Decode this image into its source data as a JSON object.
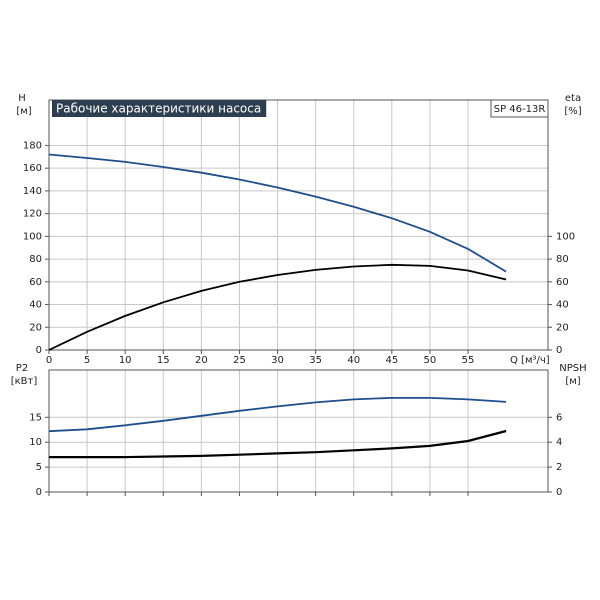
{
  "chart_data": [
    {
      "type": "line",
      "title": "Рабочие характеристики насоса",
      "annotation": "SP 46-13R",
      "ylabel": "H",
      "yunit": "[м]",
      "y2label": "eta",
      "y2unit": "[%]",
      "xlabel": "Q [м³/ч]",
      "x": [
        0,
        5,
        10,
        15,
        20,
        25,
        30,
        35,
        40,
        45,
        50,
        55,
        60
      ],
      "xlim": [
        0,
        65.5
      ],
      "xticks": [
        0,
        5,
        10,
        15,
        20,
        25,
        30,
        35,
        40,
        45,
        50,
        55
      ],
      "ylim": [
        0,
        220
      ],
      "yticks": [
        0,
        20,
        40,
        60,
        80,
        100,
        120,
        140,
        160,
        180
      ],
      "y2lim": [
        0,
        220
      ],
      "y2ticks": [
        0,
        20,
        40,
        60,
        80,
        100
      ],
      "grid": true,
      "series": [
        {
          "name": "H",
          "color": "#1f4e8c",
          "values": [
            172,
            169,
            165.5,
            161,
            156,
            150,
            143,
            135,
            126,
            116,
            104,
            89,
            69
          ]
        },
        {
          "name": "eta",
          "color": "#000000",
          "axis": "y2",
          "values": [
            0,
            16,
            30,
            42,
            52,
            60,
            66,
            70.5,
            73.5,
            75,
            74,
            70,
            62
          ]
        }
      ]
    },
    {
      "type": "line",
      "ylabel": "P2",
      "yunit": "[кВт]",
      "y2label": "NPSH",
      "y2unit": "[м]",
      "x": [
        0,
        5,
        10,
        15,
        20,
        25,
        30,
        35,
        40,
        45,
        50,
        55,
        60
      ],
      "xlim": [
        0,
        65.5
      ],
      "ylim": [
        0,
        24.5
      ],
      "yticks": [
        0,
        5,
        10,
        15
      ],
      "y2lim": [
        0,
        9.8
      ],
      "y2ticks": [
        0,
        2,
        4,
        6
      ],
      "grid": true,
      "series": [
        {
          "name": "P2",
          "color": "#1f4e8c",
          "values": [
            12.2,
            12.6,
            13.4,
            14.3,
            15.3,
            16.3,
            17.2,
            18,
            18.6,
            18.9,
            18.9,
            18.6,
            18.1
          ]
        },
        {
          "name": "NPSH",
          "color": "#000000",
          "axis": "y2",
          "values": [
            2.8,
            2.8,
            2.8,
            2.85,
            2.9,
            3.0,
            3.1,
            3.2,
            3.35,
            3.5,
            3.7,
            4.1,
            4.9
          ]
        }
      ]
    }
  ]
}
